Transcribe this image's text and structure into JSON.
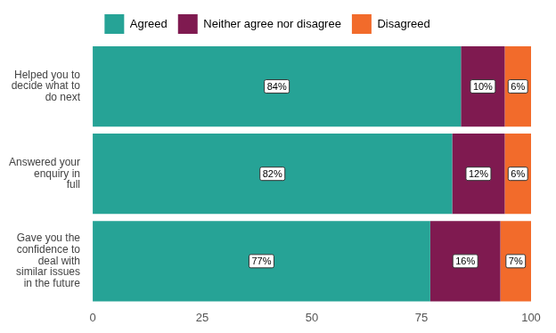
{
  "chart_data": {
    "type": "bar",
    "orientation": "horizontal",
    "stacked": true,
    "grid": false,
    "legend": "top",
    "data_labels": true,
    "categories": [
      "Helped you to decide what to do next",
      "Answered your enquiry in full",
      "Gave you the confidence to deal with similar issues in the future"
    ],
    "series": [
      {
        "name": "Agreed",
        "color": "#26a396",
        "values": [
          84,
          82,
          77
        ],
        "value_labels": [
          "84%",
          "82%",
          "77%"
        ]
      },
      {
        "name": "Neither agree nor disagree",
        "color": "#7f1a50",
        "values": [
          10,
          12,
          16
        ],
        "value_labels": [
          "10%",
          "12%",
          "16%"
        ]
      },
      {
        "name": "Disagreed",
        "color": "#f26b2b",
        "values": [
          6,
          6,
          7
        ],
        "value_labels": [
          "6%",
          "6%",
          "7%"
        ]
      }
    ],
    "xlim": [
      0,
      100
    ],
    "xticks": [
      0,
      25,
      50,
      75,
      100
    ]
  }
}
